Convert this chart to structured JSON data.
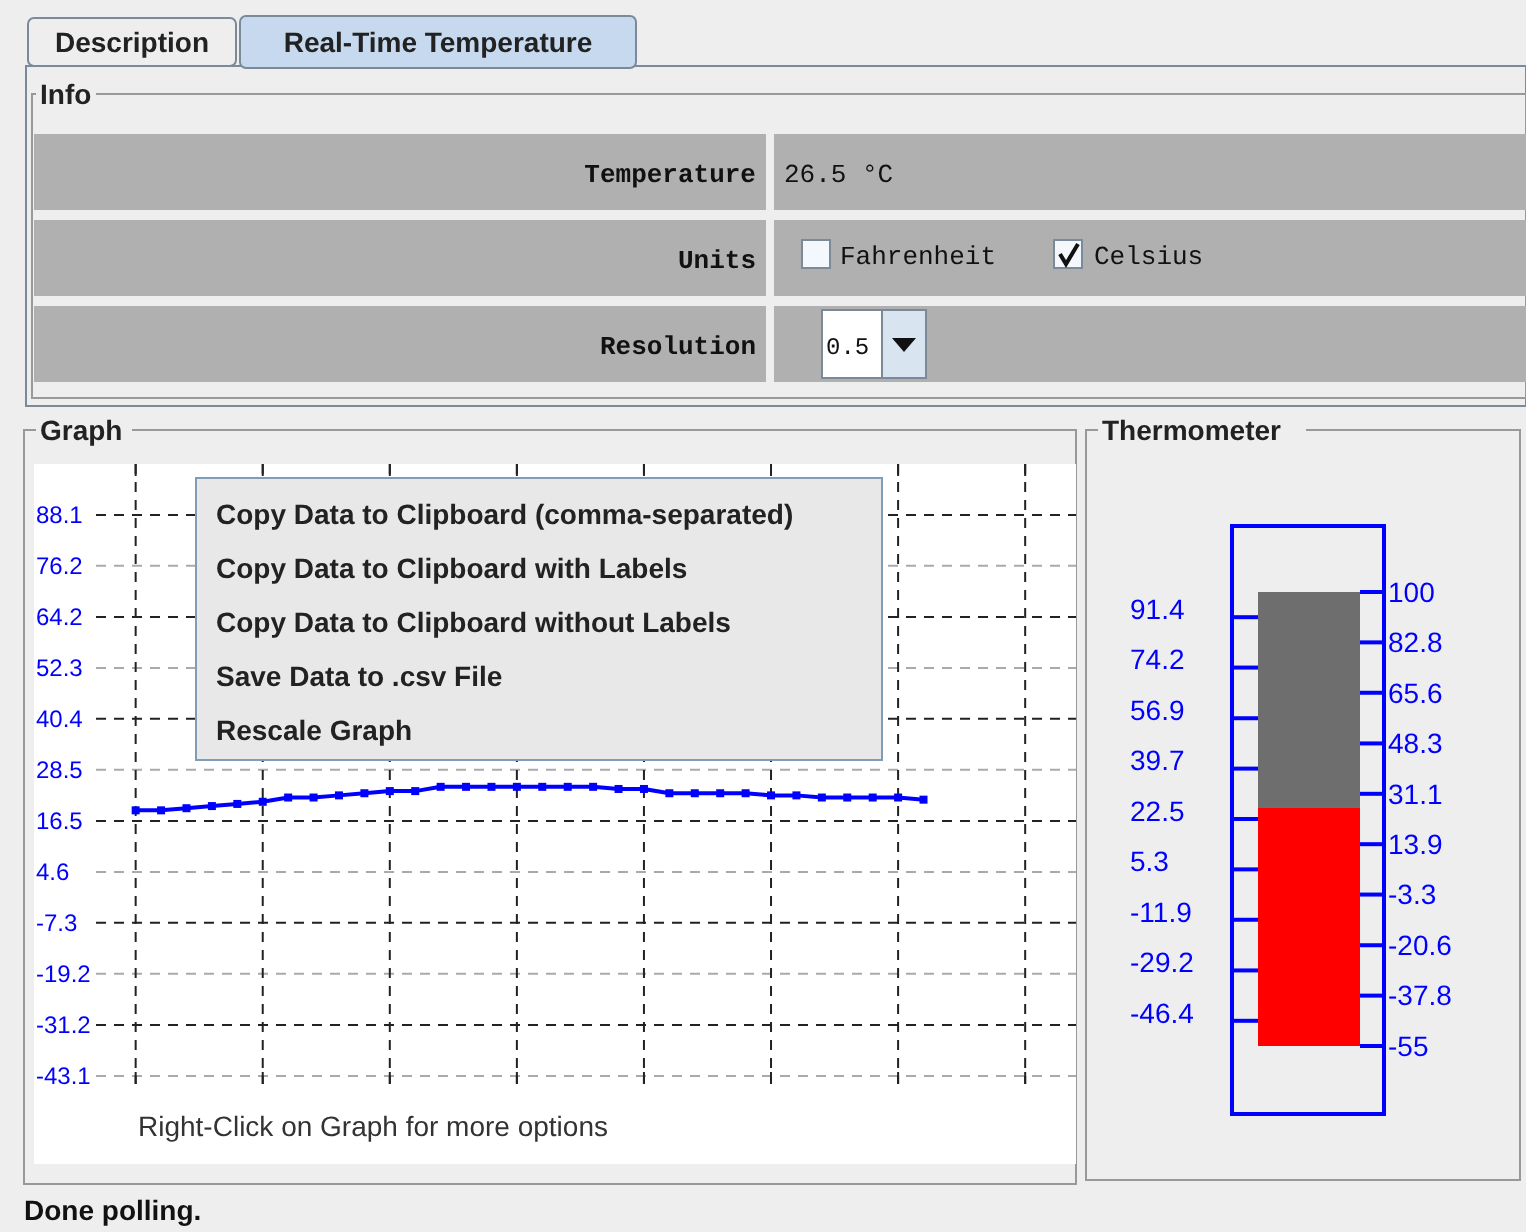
{
  "chart_data": [
    {
      "type": "other",
      "annotations": [
        "Description",
        "Real-Time Temperature",
        "Info",
        "Temperature",
        "26.5 °C",
        "Units",
        "Fahrenheit",
        "Celsius",
        "Resolution",
        "0.5",
        "Done polling."
      ]
    },
    {
      "type": "line",
      "title": "Graph",
      "color": "#0000ff",
      "marker": "square",
      "grid": true,
      "categories": [
        null,
        null,
        null,
        null,
        null,
        null,
        null,
        null,
        null,
        null,
        null,
        null,
        null,
        null,
        null,
        null,
        null,
        null,
        null,
        null,
        null,
        null,
        null,
        null,
        null,
        null,
        null,
        null,
        null,
        null,
        null,
        null
      ],
      "values": [
        19,
        19,
        19.5,
        20,
        20.5,
        21,
        22,
        22,
        22.5,
        23,
        23.5,
        23.5,
        24.5,
        24.5,
        24.5,
        24.5,
        24.5,
        24.5,
        24.5,
        24,
        24,
        23,
        23,
        23,
        23,
        22.5,
        22.5,
        22,
        22,
        22,
        22,
        21.5
      ],
      "ylim": [
        -45,
        100
      ],
      "yticks": [
        88.1,
        76.2,
        64.2,
        52.3,
        40.4,
        28.5,
        16.5,
        4.6,
        -7.3,
        -19.2,
        -31.2,
        -43.1
      ],
      "annotations": [
        "Copy Data to Clipboard (comma-separated)",
        "Copy Data to Clipboard with Labels",
        "Copy Data to Clipboard without Labels",
        "Save Data to .csv File",
        "Rescale Graph",
        "Right-Click on Graph for more options"
      ]
    },
    {
      "type": "bar",
      "title": "Thermometer",
      "categories": [
        null
      ],
      "values": [
        81.5
      ],
      "base": [
        -55
      ],
      "color": "#ff0000",
      "ylim": [
        -55,
        100
      ],
      "yticks": [
        91.4,
        74.2,
        56.9,
        39.7,
        22.5,
        5.3,
        -11.9,
        -29.2,
        -46.4
      ],
      "y2lim": [
        -55,
        100
      ],
      "y2ticks": [
        100,
        82.8,
        65.6,
        48.3,
        31.1,
        13.9,
        -3.3,
        -20.6,
        -37.8,
        -55
      ]
    }
  ]
}
